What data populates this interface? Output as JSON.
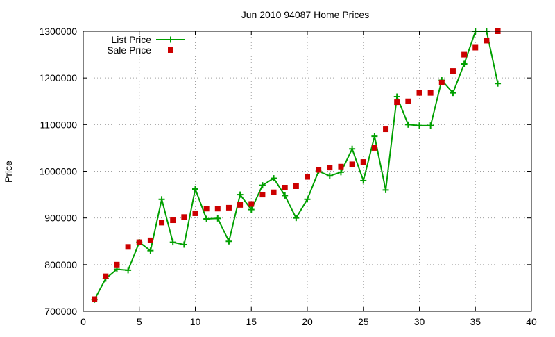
{
  "chart_data": {
    "type": "line",
    "title": "Jun 2010 94087 Home Prices",
    "xlabel": "",
    "ylabel": "Price",
    "xlim": [
      0,
      40
    ],
    "ylim": [
      700000,
      1300000
    ],
    "xticks": [
      0,
      5,
      10,
      15,
      20,
      25,
      30,
      35,
      40
    ],
    "yticks": [
      700000,
      800000,
      900000,
      1000000,
      1100000,
      1200000,
      1300000
    ],
    "grid": true,
    "legend_position": "top-left",
    "x": [
      1,
      2,
      3,
      4,
      5,
      6,
      7,
      8,
      9,
      10,
      11,
      12,
      13,
      14,
      15,
      16,
      17,
      18,
      19,
      20,
      21,
      22,
      23,
      24,
      25,
      26,
      27,
      28,
      29,
      30,
      31,
      32,
      33,
      34,
      35,
      36,
      37
    ],
    "series": [
      {
        "name": "List Price",
        "style": "linespoints",
        "marker": "plus",
        "color": "#00a000",
        "values": [
          725000,
          770000,
          790000,
          788000,
          848000,
          830000,
          940000,
          848000,
          843000,
          962000,
          898000,
          899000,
          850000,
          950000,
          918000,
          970000,
          985000,
          948000,
          900000,
          940000,
          1000000,
          990000,
          998000,
          1048000,
          980000,
          1075000,
          960000,
          1160000,
          1100000,
          1098000,
          1098000,
          1195000,
          1168000,
          1230000,
          1300000,
          1300000,
          1188000
        ]
      },
      {
        "name": "Sale Price",
        "style": "points",
        "marker": "square",
        "color": "#cc0000",
        "values": [
          726000,
          775000,
          800000,
          838000,
          848000,
          852000,
          890000,
          895000,
          902000,
          910000,
          920000,
          920000,
          922000,
          928000,
          930000,
          950000,
          955000,
          965000,
          968000,
          988000,
          1003000,
          1008000,
          1010000,
          1015000,
          1020000,
          1050000,
          1090000,
          1148000,
          1150000,
          1168000,
          1168000,
          1190000,
          1215000,
          1250000,
          1265000,
          1280000,
          1300000
        ]
      }
    ]
  }
}
